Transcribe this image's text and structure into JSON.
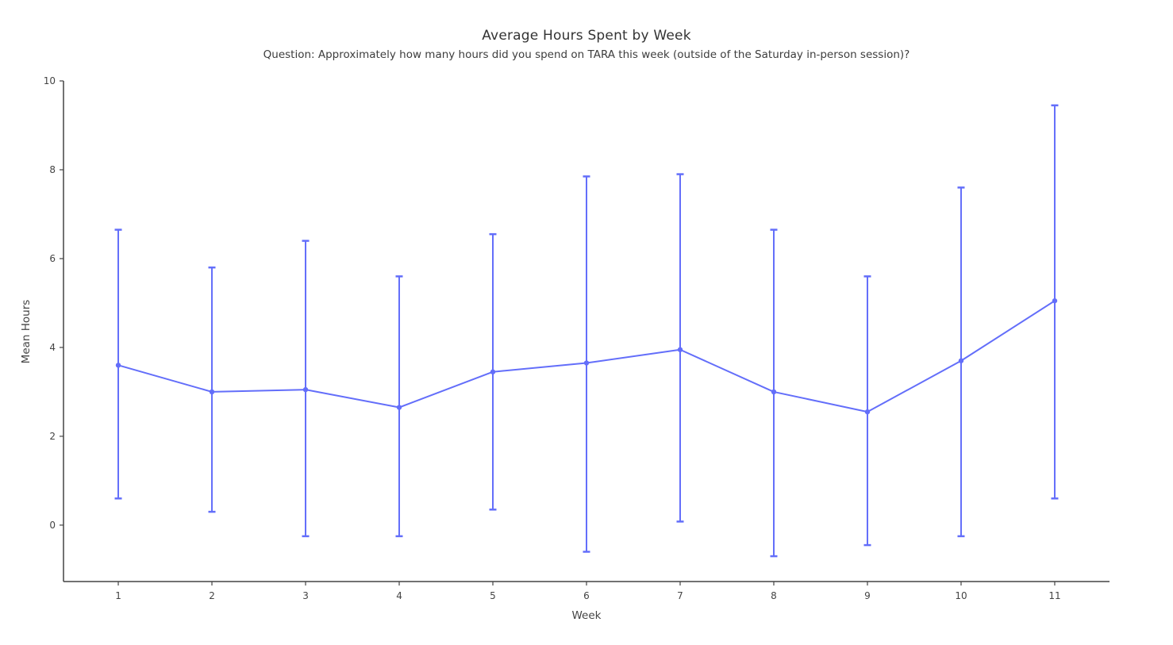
{
  "page": {
    "background": "#ffffff"
  },
  "chart_data": {
    "type": "line",
    "title": "Average Hours Spent by Week",
    "subtitle": "Question: Approximately how many hours did you spend on TARA this week (outside of the Saturday in-person session)?",
    "xlabel": "Week",
    "ylabel": "Mean Hours",
    "categories": [
      1,
      2,
      3,
      4,
      5,
      6,
      7,
      8,
      9,
      10,
      11
    ],
    "series": [
      {
        "name": "Mean Hours",
        "values": [
          3.6,
          3.0,
          3.05,
          2.65,
          3.45,
          3.65,
          3.95,
          3.0,
          2.55,
          3.7,
          5.05
        ],
        "error_upper": [
          6.65,
          5.8,
          6.4,
          5.6,
          6.55,
          7.85,
          7.9,
          6.65,
          5.6,
          7.6,
          9.45
        ],
        "error_lower": [
          0.6,
          0.3,
          -0.25,
          -0.25,
          0.35,
          -0.6,
          0.08,
          -0.7,
          -0.45,
          -0.25,
          0.6
        ]
      }
    ],
    "y_ticks": [
      0,
      2,
      4,
      6,
      8,
      10
    ],
    "ylim": [
      -1.27,
      10
    ],
    "xlim": [
      0.415,
      11.585
    ],
    "grid": false,
    "legend": "none",
    "colors": {
      "line": "#636efa",
      "axis": "#444444",
      "tick_label": "#444444",
      "title": "#333333"
    }
  }
}
